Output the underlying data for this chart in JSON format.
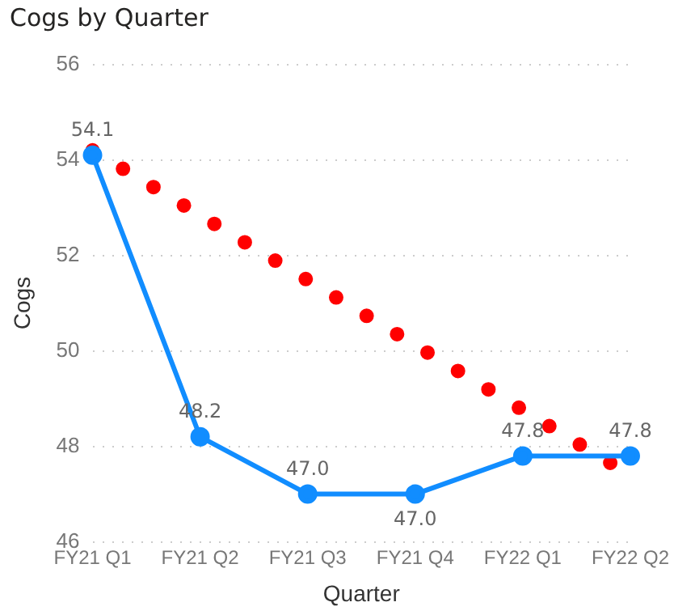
{
  "chart_data": {
    "type": "line",
    "title": "Cogs by Quarter",
    "xlabel": "Quarter",
    "ylabel": "Cogs",
    "categories": [
      "FY21 Q1",
      "FY21 Q2",
      "FY21 Q3",
      "FY21 Q4",
      "FY22 Q1",
      "FY22 Q2"
    ],
    "series": [
      {
        "color": "#118dff",
        "values": [
          54.1,
          48.2,
          47.0,
          47.0,
          47.8,
          47.8
        ],
        "value_labels": [
          "54.1",
          "48.2",
          "47.0",
          "47.0",
          "47.8",
          "47.8"
        ],
        "marker": "circle"
      },
      {
        "type": "line",
        "color": "#ff0000",
        "x": [
          "FY21 Q1",
          "FY22 Q2"
        ],
        "values": [
          54.2,
          47.4
        ],
        "line_style": "dotted",
        "marker": "none"
      }
    ],
    "ylim": [
      46,
      56
    ],
    "yticks": [
      46,
      48,
      50,
      52,
      54,
      56
    ],
    "grid": "y",
    "legend": false
  }
}
